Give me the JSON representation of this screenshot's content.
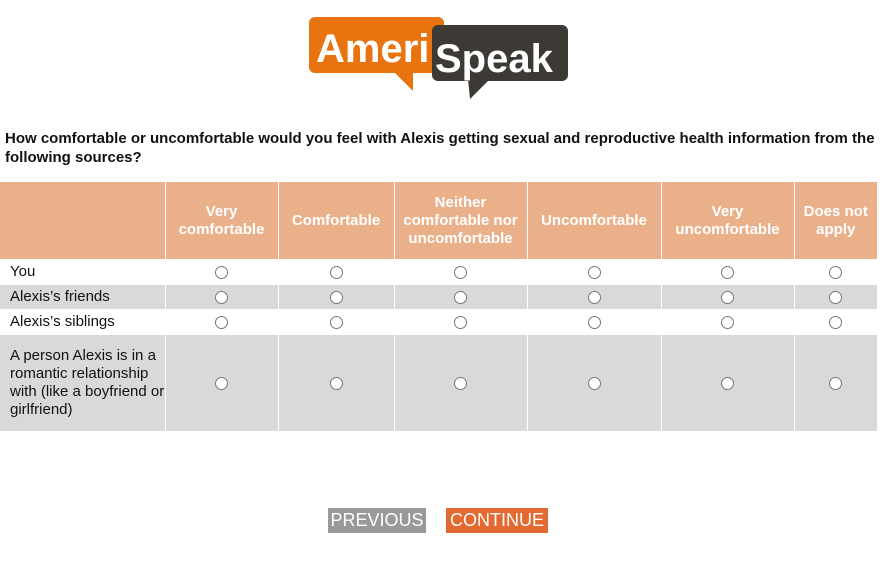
{
  "logo": {
    "part1": "Ameri",
    "part2": "Speak",
    "colors": {
      "orange": "#e8730f",
      "dark": "#3d3a36"
    }
  },
  "question": "How comfortable or uncomfortable would you feel with Alexis getting sexual and reproductive health information from the following sources?",
  "columns": [
    "Very comfortable",
    "Comfortable",
    "Neither comfortable nor uncomfortable",
    "Uncomfortable",
    "Very uncomfortable",
    "Does not apply"
  ],
  "rows": [
    "You",
    "Alexis’s friends",
    "Alexis’s siblings",
    "A person Alexis is in a romantic relationship with (like a boyfriend or girlfriend)"
  ],
  "buttons": {
    "previous": "PREVIOUS",
    "continue": "CONTINUE"
  },
  "colors": {
    "header": "#eab08a",
    "previous": "#999999",
    "continue": "#e2692f"
  }
}
